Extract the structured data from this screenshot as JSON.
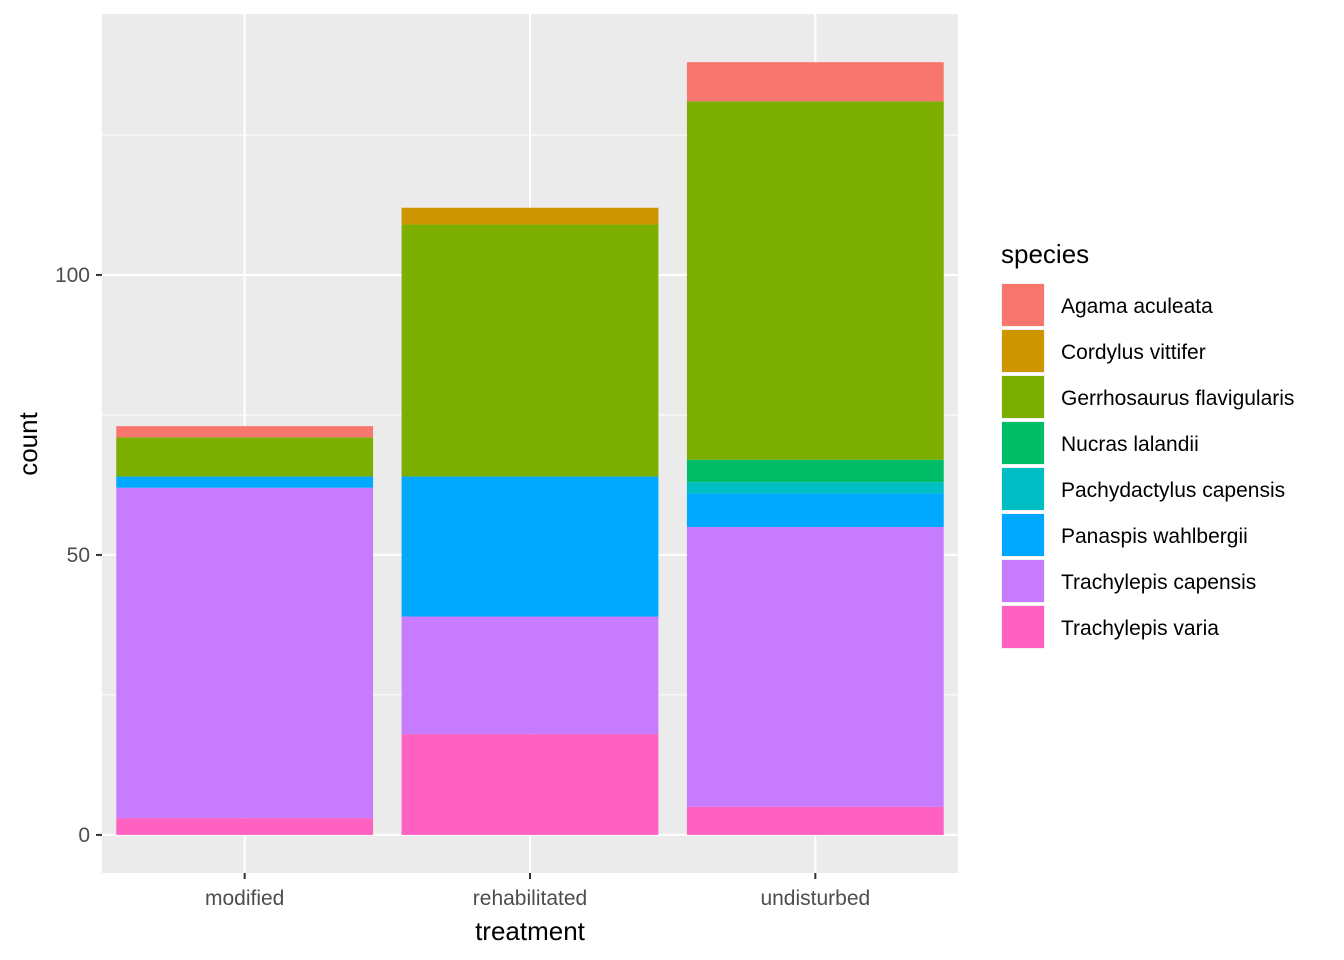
{
  "chart_data": {
    "type": "bar",
    "stacked": true,
    "xlabel": "treatment",
    "ylabel": "count",
    "categories": [
      "modified",
      "rehabilitated",
      "undisturbed"
    ],
    "ylim": [
      -6.8,
      146.6
    ],
    "yticks": [
      0,
      50,
      100
    ],
    "y_minor_ticks": [
      25,
      75,
      125
    ],
    "grid": true,
    "legend_position": "right",
    "legend": {
      "title": "species",
      "entries": [
        "Agama aculeata",
        "Cordylus vittifer",
        "Gerrhosaurus flavigularis",
        "Nucras lalandii",
        "Pachydactylus capensis",
        "Panaspis wahlbergii",
        "Trachylepis capensis",
        "Trachylepis varia"
      ]
    },
    "series": [
      {
        "name": "Trachylepis varia",
        "color": "#FF61C3",
        "values": [
          3,
          18,
          5
        ]
      },
      {
        "name": "Trachylepis capensis",
        "color": "#C77CFF",
        "values": [
          59,
          21,
          50
        ]
      },
      {
        "name": "Panaspis wahlbergii",
        "color": "#00A9FF",
        "values": [
          2,
          25,
          6
        ]
      },
      {
        "name": "Pachydactylus capensis",
        "color": "#00BFC4",
        "values": [
          0,
          0,
          2
        ]
      },
      {
        "name": "Nucras lalandii",
        "color": "#00BE67",
        "values": [
          0,
          0,
          4
        ]
      },
      {
        "name": "Gerrhosaurus flavigularis",
        "color": "#7CAE00",
        "values": [
          7,
          45,
          64
        ]
      },
      {
        "name": "Cordylus vittifer",
        "color": "#CD9600",
        "values": [
          0,
          3,
          0
        ]
      },
      {
        "name": "Agama aculeata",
        "color": "#F8766D",
        "values": [
          2,
          0,
          7
        ]
      }
    ]
  }
}
